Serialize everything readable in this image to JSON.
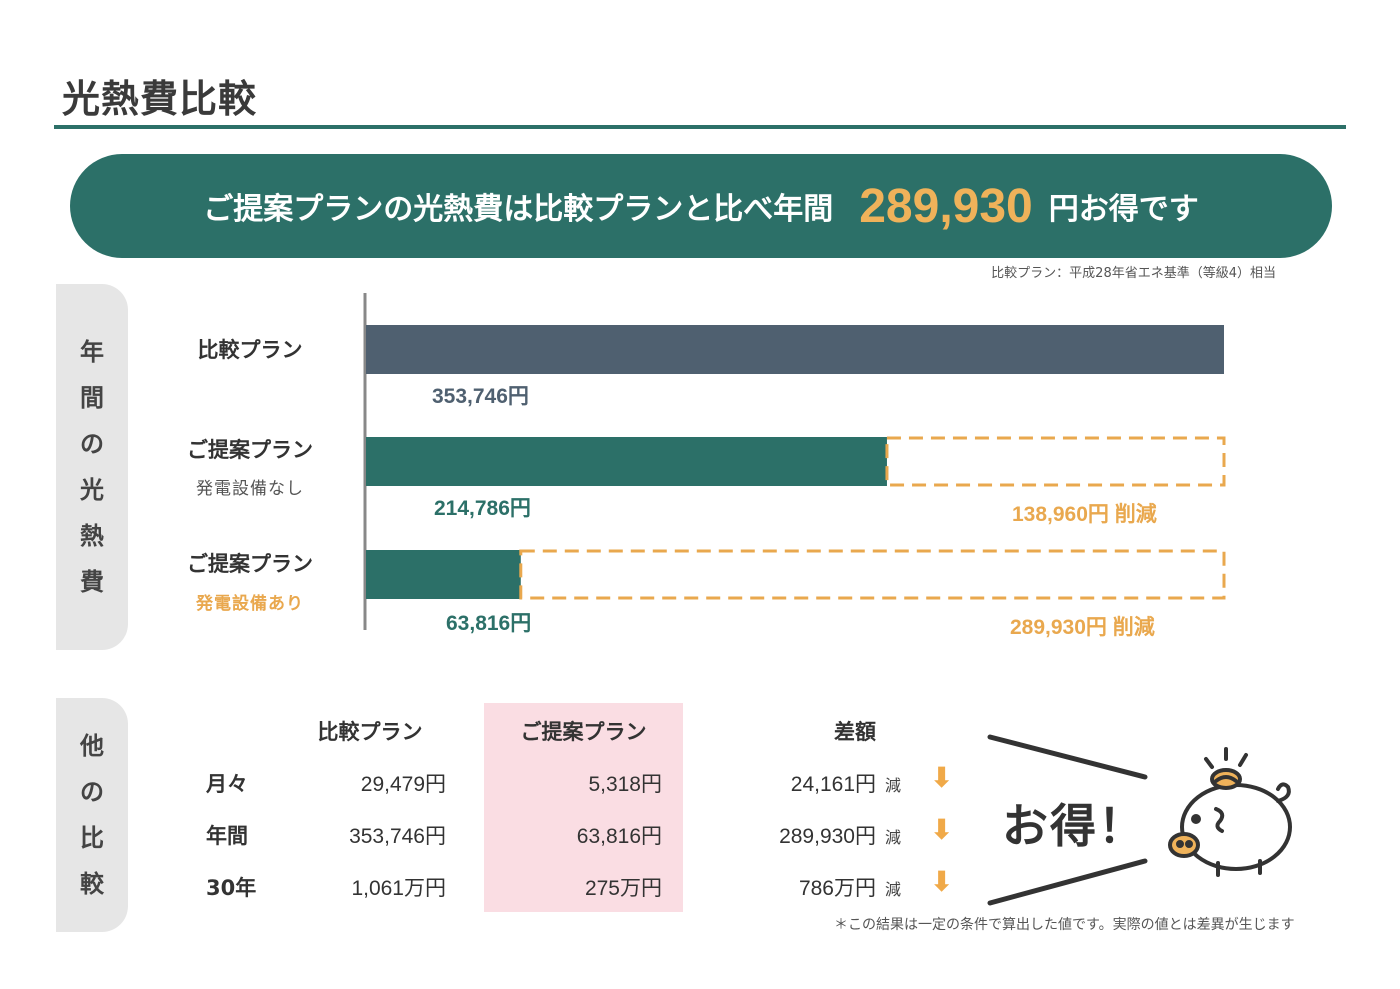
{
  "page_title": "光熱費比較",
  "banner": {
    "text_before": "ご提案プランの光熱費は比較プランと比べ年間",
    "amount": "289,930",
    "text_after": "円お得です"
  },
  "basis_note": "比較プラン：平成28年省エネ基準（等級4）相当",
  "annual_tab": [
    "年",
    "間",
    "の",
    "光",
    "熱",
    "費"
  ],
  "other_tab": [
    "他",
    "の",
    "比",
    "較"
  ],
  "colors": {
    "teal": "#2c7068",
    "slate": "#4f6070",
    "orange": "#e9a84e",
    "pink": "#fadde3"
  },
  "chart_data": {
    "type": "bar",
    "orientation": "horizontal",
    "categories": [
      {
        "label": "比較プラン",
        "sub": ""
      },
      {
        "label": "ご提案プラン",
        "sub": "発電設備なし"
      },
      {
        "label": "ご提案プラン",
        "sub": "発電設備あり"
      }
    ],
    "values": [
      353746,
      214786,
      63816
    ],
    "value_labels": [
      "353,746円",
      "214,786円",
      "63,816円"
    ],
    "reduction_labels": [
      "",
      "138,960円 削減",
      "289,930円 削減"
    ],
    "xlim": [
      0,
      353746
    ]
  },
  "table": {
    "headers": [
      "比較プラン",
      "ご提案プラン",
      "差額"
    ],
    "rows": [
      {
        "label": "月々",
        "compare": "29,479円",
        "proposal": "5,318円",
        "diff": "24,161円",
        "unit": "減"
      },
      {
        "label": "年間",
        "compare": "353,746円",
        "proposal": "63,816円",
        "diff": "289,930円",
        "unit": "減"
      },
      {
        "label": "30年",
        "compare": "1,061万円",
        "proposal": "275万円",
        "diff": "786万円",
        "unit": "減"
      }
    ]
  },
  "otoku": "お得！",
  "footnote": "＊この結果は一定の条件で算出した値です。実際の値とは差異が生じます",
  "icons": {
    "arrow": "down-arrow-icon",
    "pig": "piggy-bank-icon"
  }
}
